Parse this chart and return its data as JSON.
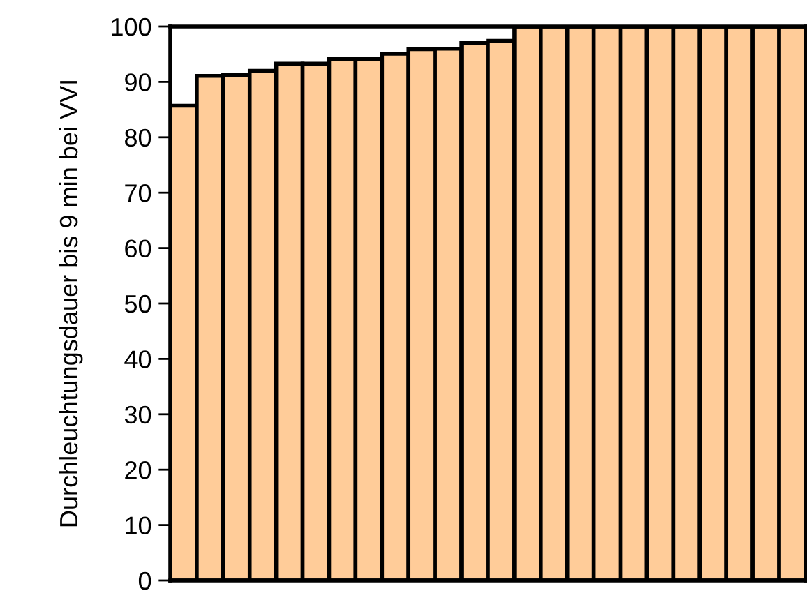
{
  "chart_data": {
    "type": "bar",
    "ylabel": "Durchleuchtungsdauer bis 9 min bei VVI",
    "categories": [
      null,
      null,
      null,
      null,
      null,
      null,
      null,
      null,
      null,
      null,
      null,
      null,
      null,
      null,
      null,
      null,
      null,
      null,
      null,
      null,
      null,
      null,
      null,
      null
    ],
    "values": [
      85.7,
      91.1,
      91.2,
      92.0,
      93.3,
      93.3,
      94.1,
      94.1,
      95.1,
      95.9,
      96.0,
      97.0,
      97.4,
      100,
      100,
      100,
      100,
      100,
      100,
      100,
      100,
      100,
      100,
      100
    ],
    "color": "#ffcc99",
    "ylim": [
      0,
      100
    ],
    "yticks": [
      0,
      10,
      20,
      30,
      40,
      50,
      60,
      70,
      80,
      90,
      100
    ],
    "grid": false,
    "tick_labels": "y"
  }
}
